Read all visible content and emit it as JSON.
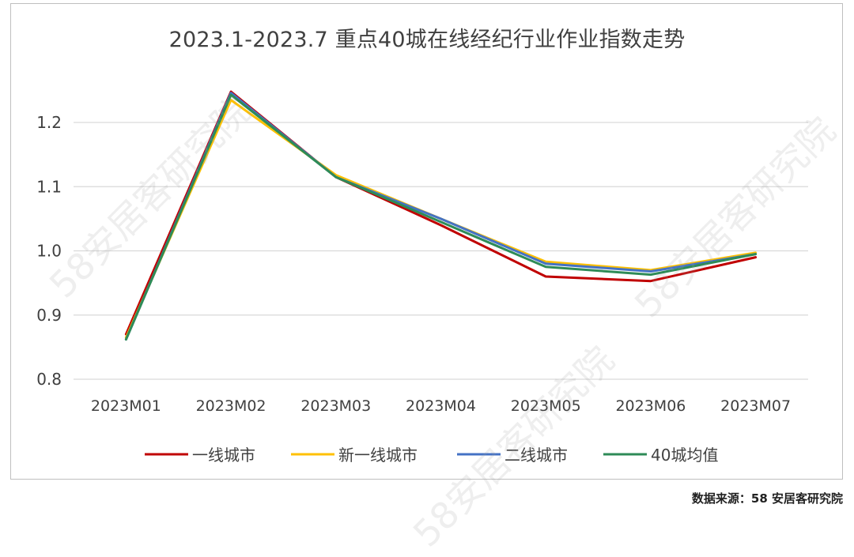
{
  "chart_data": {
    "type": "line",
    "title": "2023.1-2023.7 重点40城在线经纪行业作业指数走势",
    "xlabel": "",
    "ylabel": "",
    "categories": [
      "2023M01",
      "2023M02",
      "2023M03",
      "2023M04",
      "2023M05",
      "2023M06",
      "2023M07"
    ],
    "y_ticks": [
      "0.8",
      "0.9",
      "1.0",
      "1.1",
      "1.2"
    ],
    "ylim": [
      0.8,
      1.27
    ],
    "grid": true,
    "legend_position": "bottom",
    "series": [
      {
        "name": "一线城市",
        "color": "#c00000",
        "values": [
          0.87,
          1.248,
          1.115,
          1.04,
          0.96,
          0.953,
          0.99
        ]
      },
      {
        "name": "新一线城市",
        "color": "#ffc000",
        "values": [
          0.865,
          1.235,
          1.118,
          1.05,
          0.983,
          0.97,
          0.997
        ]
      },
      {
        "name": "二线城市",
        "color": "#4472c4",
        "values": [
          0.862,
          1.246,
          1.115,
          1.05,
          0.98,
          0.968,
          0.995
        ]
      },
      {
        "name": "40城均值",
        "color": "#2e8b57",
        "values": [
          0.862,
          1.243,
          1.115,
          1.045,
          0.975,
          0.963,
          0.995
        ]
      }
    ]
  },
  "source_note": "数据来源：58 安居客研究院",
  "watermark_text": "58安居客研究院"
}
